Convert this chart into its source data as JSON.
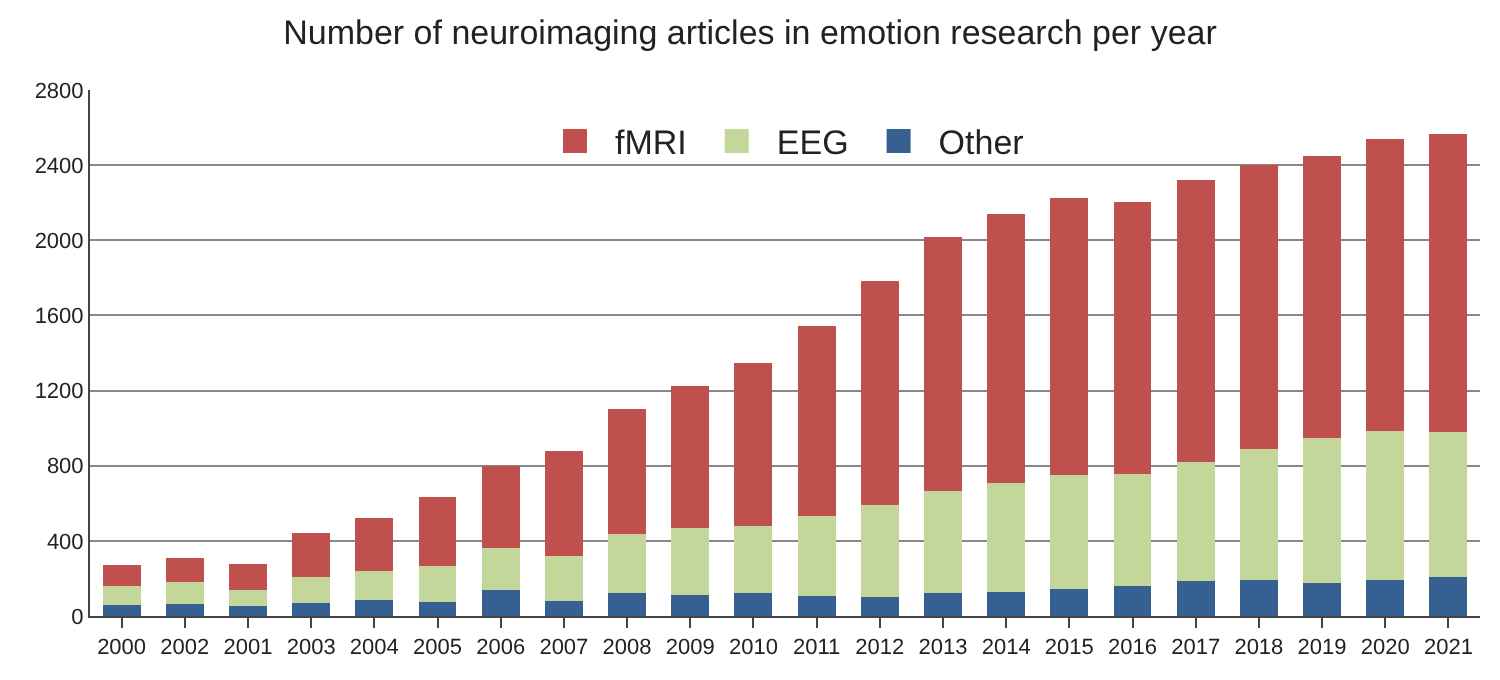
{
  "chart_data": {
    "type": "bar",
    "title": "Number of neuroimaging articles in emotion research per year",
    "categories": [
      "2000",
      "2002",
      "2001",
      "2003",
      "2004",
      "2005",
      "2006",
      "2007",
      "2008",
      "2009",
      "2010",
      "2011",
      "2012",
      "2013",
      "2014",
      "2015",
      "2016",
      "2017",
      "2018",
      "2019",
      "2020",
      "2021"
    ],
    "stacked": true,
    "series": [
      {
        "name": "Other",
        "color": "#376092",
        "values": [
          60,
          65,
          55,
          70,
          85,
          75,
          140,
          80,
          120,
          110,
          120,
          105,
          100,
          120,
          130,
          145,
          160,
          185,
          190,
          175,
          190,
          210
        ]
      },
      {
        "name": "EEG",
        "color": "#c4d79b",
        "values": [
          100,
          115,
          85,
          140,
          155,
          190,
          220,
          240,
          315,
          360,
          360,
          430,
          490,
          545,
          580,
          605,
          595,
          635,
          700,
          775,
          795,
          770
        ]
      },
      {
        "name": "fMRI",
        "color": "#c0504d",
        "values": [
          110,
          130,
          135,
          230,
          280,
          370,
          440,
          560,
          665,
          755,
          865,
          1010,
          1195,
          1355,
          1430,
          1475,
          1450,
          1500,
          1510,
          1500,
          1555,
          1585
        ]
      }
    ],
    "ylim": [
      0,
      2800
    ],
    "yticks": [
      0,
      400,
      800,
      1200,
      1600,
      2000,
      2400,
      2800
    ],
    "grid": "y",
    "legend": "top"
  }
}
